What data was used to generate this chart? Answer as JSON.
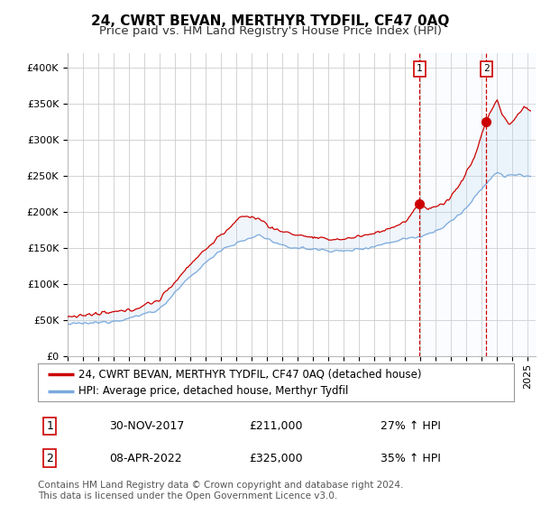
{
  "title": "24, CWRT BEVAN, MERTHYR TYDFIL, CF47 0AQ",
  "subtitle": "Price paid vs. HM Land Registry's House Price Index (HPI)",
  "ylabel_ticks": [
    "£0",
    "£50K",
    "£100K",
    "£150K",
    "£200K",
    "£250K",
    "£300K",
    "£350K",
    "£400K"
  ],
  "ytick_values": [
    0,
    50000,
    100000,
    150000,
    200000,
    250000,
    300000,
    350000,
    400000
  ],
  "ylim": [
    0,
    420000
  ],
  "xlim_start": 1995.0,
  "xlim_end": 2025.5,
  "background_color": "#ffffff",
  "plot_bg_color": "#ffffff",
  "grid_color": "#cccccc",
  "red_line_color": "#cc0000",
  "blue_line_color": "#7aaadd",
  "shade_color": "#ddeeff",
  "vline_color": "#cc0000",
  "marker_color": "#cc0000",
  "sale1_x": 2017.92,
  "sale1_y": 211000,
  "sale2_x": 2022.27,
  "sale2_y": 325000,
  "legend_label1": "24, CWRT BEVAN, MERTHYR TYDFIL, CF47 0AQ (detached house)",
  "legend_label2": "HPI: Average price, detached house, Merthyr Tydfil",
  "table_row1_date": "30-NOV-2017",
  "table_row1_price": "£211,000",
  "table_row1_hpi": "27% ↑ HPI",
  "table_row2_date": "08-APR-2022",
  "table_row2_price": "£325,000",
  "table_row2_hpi": "35% ↑ HPI",
  "footer": "Contains HM Land Registry data © Crown copyright and database right 2024.\nThis data is licensed under the Open Government Licence v3.0.",
  "title_fontsize": 11,
  "subtitle_fontsize": 9.5,
  "tick_fontsize": 8,
  "legend_fontsize": 8.5,
  "table_fontsize": 9,
  "footer_fontsize": 7.5
}
